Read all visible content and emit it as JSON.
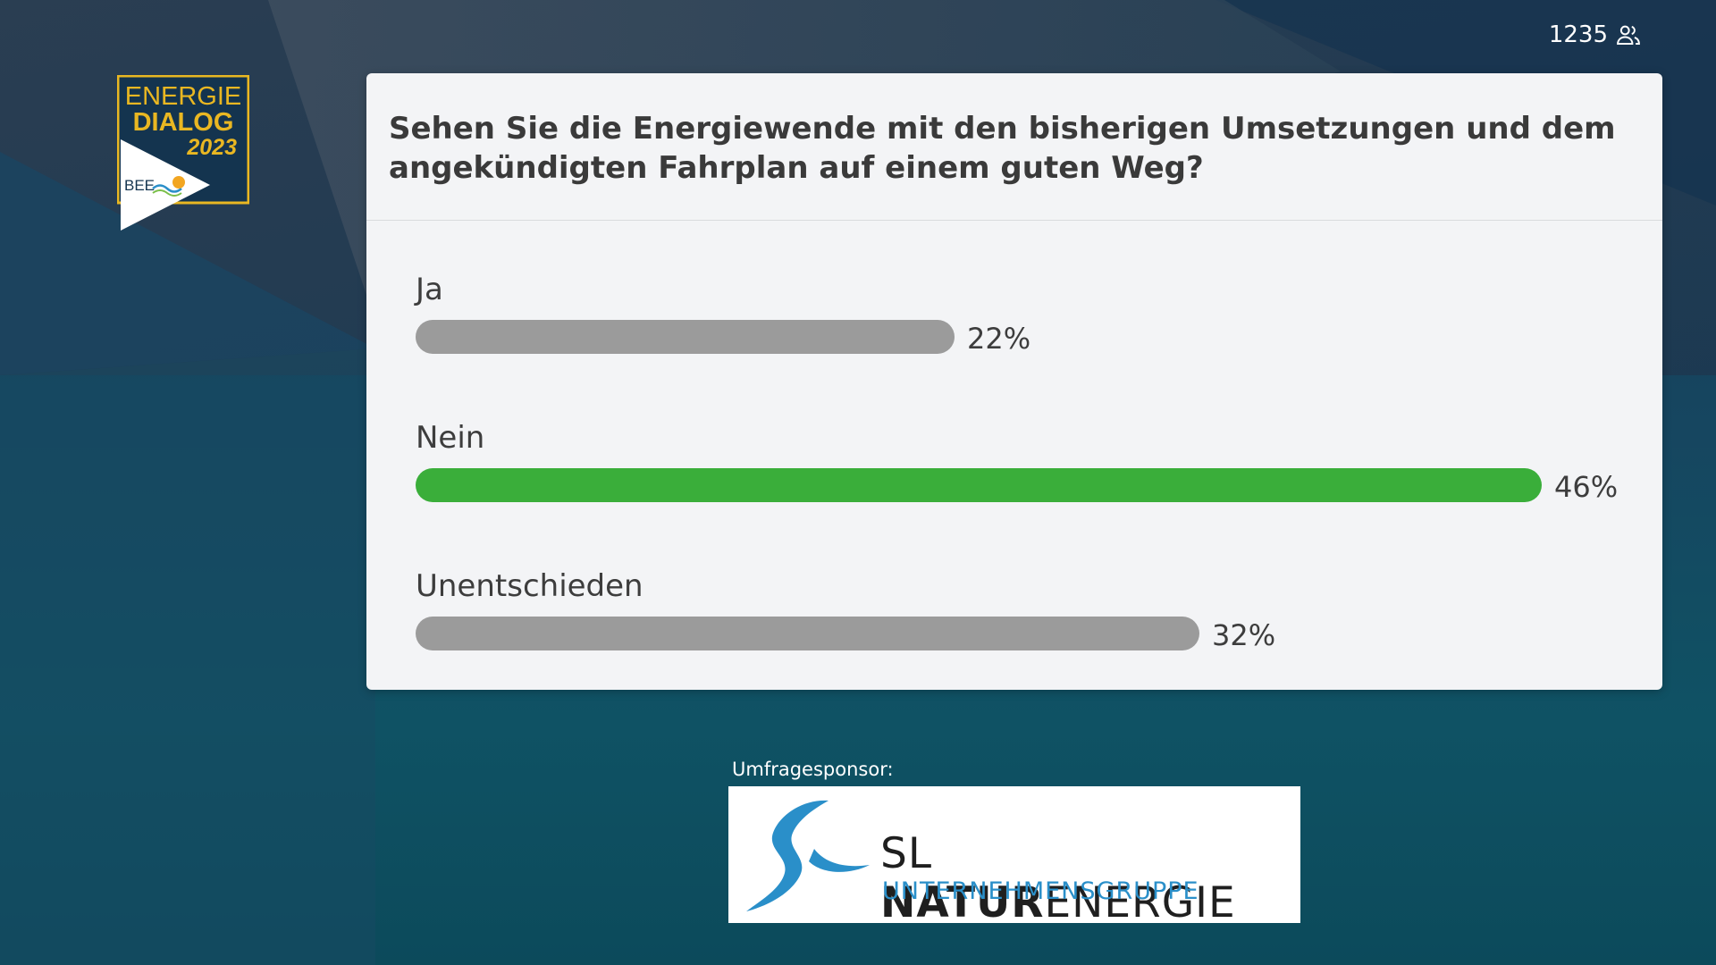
{
  "header": {
    "participant_count": "1235",
    "participant_icon": "users-icon"
  },
  "logo": {
    "line1": "ENERGIE",
    "line2": "DIALOG",
    "year": "2023",
    "org": "BEE",
    "colors": {
      "gold": "#e9b722",
      "dark": "#14344f"
    }
  },
  "poll": {
    "question": "Sehen Sie die Energiewende mit den bisherigen Umsetzungen und dem angekündigten Fahrplan auf einem guten Weg?",
    "options": [
      {
        "label": "Ja",
        "percent": 22,
        "percent_label": "22%",
        "leader": false
      },
      {
        "label": "Nein",
        "percent": 46,
        "percent_label": "46%",
        "leader": true
      },
      {
        "label": "Unentschieden",
        "percent": 32,
        "percent_label": "32%",
        "leader": false
      }
    ],
    "colors": {
      "leader_bar": "#3aae3a",
      "other_bar": "#9b9b9b"
    }
  },
  "sponsor": {
    "caption": "Umfragesponsor:",
    "name_light_1": "SL ",
    "name_bold": "NATUR",
    "name_light_2": "ENERGIE",
    "subtitle": "UNTERNEHMENSGRUPPE",
    "colors": {
      "blue": "#2a8fc9"
    }
  }
}
